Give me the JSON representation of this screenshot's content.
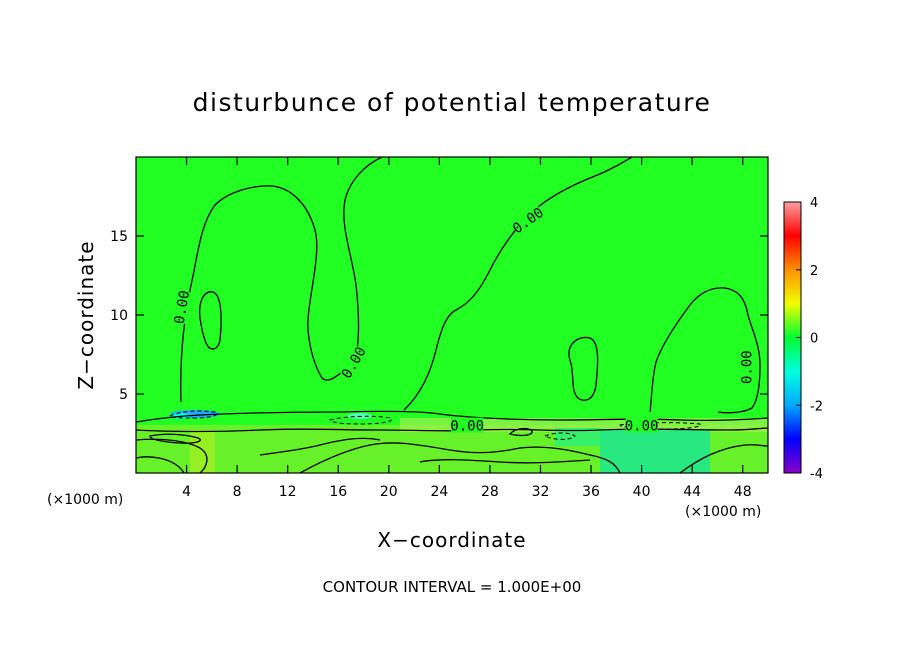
{
  "chart_data": {
    "type": "heatmap",
    "title": "disturbunce of potential temperature",
    "xlabel": "X−coordinate",
    "ylabel": "Z−coordinate",
    "x_unit": "(×1000 m)",
    "y_unit": "(×1000 m)",
    "xlim": [
      0,
      50
    ],
    "ylim": [
      0,
      20
    ],
    "x_ticks": [
      4,
      8,
      12,
      16,
      20,
      24,
      28,
      32,
      36,
      40,
      44,
      48
    ],
    "y_ticks": [
      5,
      10,
      15
    ],
    "colorbar": {
      "range": [
        -4,
        4
      ],
      "ticks": [
        4,
        2,
        0,
        -2,
        -4
      ],
      "colors": [
        "#8a00c8",
        "#0000ff",
        "#00a8ff",
        "#00ffdd",
        "#00ff30",
        "#f0ff00",
        "#ff9000",
        "#ff0000",
        "#ffa0a0"
      ]
    },
    "background_color": "#22ff22",
    "contour_interval_text": "CONTOUR INTERVAL = 1.000E+00",
    "contour_labels": [
      {
        "text": "0.00",
        "x": 3.6,
        "z": 10.5,
        "angle": -80
      },
      {
        "text": "0.00",
        "x": 17.2,
        "z": 7.0,
        "angle": -60
      },
      {
        "text": "0.00",
        "x": 31.0,
        "z": 16.0,
        "angle": -35
      },
      {
        "text": "0.00",
        "x": 26.2,
        "z": 3.0,
        "angle": 0
      },
      {
        "text": "0.00",
        "x": 40.0,
        "z": 3.0,
        "angle": 0
      },
      {
        "text": "0.00",
        "x": 48.3,
        "z": 6.7,
        "angle": -90
      }
    ]
  }
}
